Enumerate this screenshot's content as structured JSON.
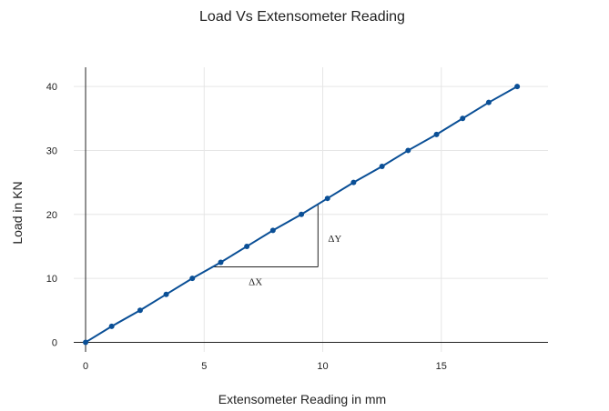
{
  "chart_data": {
    "type": "line",
    "title": "Load Vs Extensometer Reading",
    "xlabel": "Extensometer Reading in mm",
    "ylabel": "Load in KN",
    "xlim": [
      -0.5,
      19.5
    ],
    "ylim": [
      -1.5,
      43
    ],
    "x_ticks": [
      0,
      5,
      10,
      15
    ],
    "y_ticks": [
      0,
      10,
      20,
      30,
      40
    ],
    "grid": true,
    "colors": {
      "series": "#0a4f96",
      "grid": "#e6e6e6",
      "axis": "#222222"
    },
    "series": [
      {
        "x": [
          0,
          1.1,
          2.3,
          3.4,
          4.5,
          5.7,
          6.8,
          7.9,
          9.1,
          10.2,
          11.3,
          12.5,
          13.6,
          14.8,
          15.9,
          17.0,
          18.2
        ],
        "y": [
          0,
          2.5,
          5,
          7.5,
          10,
          12.5,
          15,
          17.5,
          20,
          22.5,
          25,
          27.5,
          30,
          32.5,
          35,
          37.5,
          40
        ]
      }
    ],
    "annotations": {
      "delta_y": {
        "label": "ΔY",
        "x": 9.8,
        "y_from": 11.8,
        "y_to": 21.6
      },
      "delta_x": {
        "label": "ΔX",
        "y": 11.8,
        "x_from": 5.3,
        "x_to": 9.8
      }
    }
  }
}
